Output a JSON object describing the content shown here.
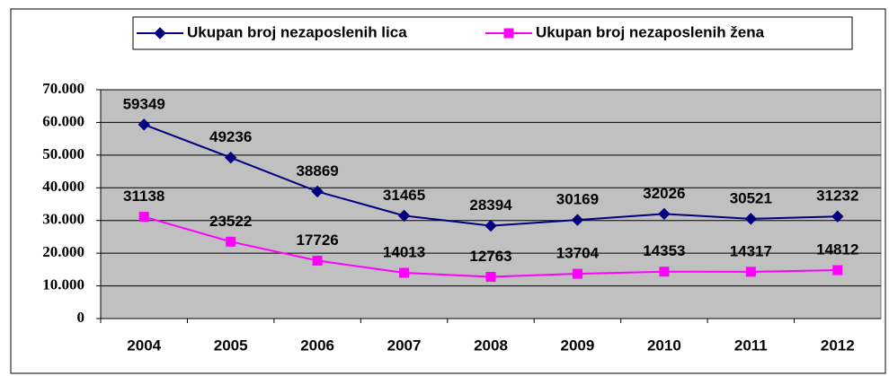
{
  "chart_data": {
    "type": "line",
    "categories": [
      "2004",
      "2005",
      "2006",
      "2007",
      "2008",
      "2009",
      "2010",
      "2011",
      "2012"
    ],
    "series": [
      {
        "name": "Ukupan broj nezaposlenih lica",
        "color": "#000080",
        "values": [
          59349,
          49236,
          38869,
          31465,
          28394,
          30169,
          32026,
          30521,
          31232
        ]
      },
      {
        "name": "Ukupan broj nezaposlenih žena",
        "color": "#ff00ff",
        "values": [
          31138,
          23522,
          17726,
          14013,
          12763,
          13704,
          14353,
          14317,
          14812
        ]
      }
    ],
    "ylim": [
      0,
      70000
    ],
    "yticks": [
      0,
      {
        "value": 10000,
        "label": "10.000"
      },
      {
        "value": 20000,
        "label": "20.000"
      },
      {
        "value": 30000,
        "label": "30.000"
      },
      {
        "value": 40000,
        "label": "40.000"
      },
      {
        "value": 50000,
        "label": "50.000"
      },
      {
        "value": 60000,
        "label": "60.000"
      },
      {
        "value": 70000,
        "label": "70.000"
      }
    ],
    "grid": true,
    "legend": "top",
    "plot_background": "#c0c0c0"
  }
}
